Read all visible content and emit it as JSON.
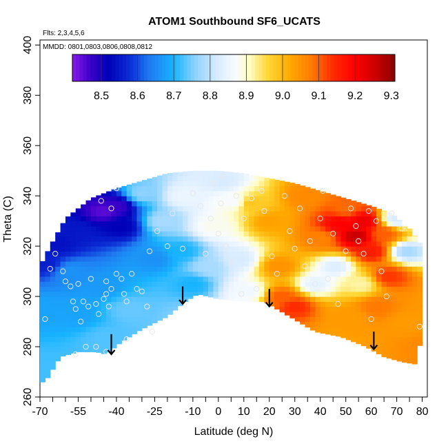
{
  "chart_data": {
    "type": "heatmap",
    "title": "ATOM1 Southbound SF6_UCATS",
    "annotations": [
      "Flts: 2,3,4,5,6",
      "MMDD: 0801,0803,0806,0808,0812"
    ],
    "xlabel": "Latitude (deg N)",
    "ylabel": "Theta (C)",
    "xlim": [
      -70,
      82
    ],
    "ylim": [
      260,
      402
    ],
    "x_tick_labels": [
      "-70",
      "-55",
      "-40",
      "-25",
      "-10",
      "0",
      "10",
      "20",
      "30",
      "40",
      "50",
      "60",
      "70",
      "80"
    ],
    "x_ticks_minor_step": 5,
    "y_tick_labels": [
      "260",
      "280",
      "300",
      "320",
      "340",
      "360",
      "380",
      "400"
    ],
    "grid": false,
    "colorbar": {
      "placement": "top-inside",
      "min": 8.42,
      "max": 9.31,
      "tick_labels": [
        "8.5",
        "8.6",
        "8.7",
        "8.8",
        "8.9",
        "9.0",
        "9.1",
        "9.2",
        "9.3"
      ],
      "stops": [
        {
          "v": 8.42,
          "c": "#8a1be8"
        },
        {
          "v": 8.47,
          "c": "#3a00c9"
        },
        {
          "v": 8.52,
          "c": "#0000b8"
        },
        {
          "v": 8.58,
          "c": "#0c2fd6"
        },
        {
          "v": 8.63,
          "c": "#1f78f0"
        },
        {
          "v": 8.7,
          "c": "#18b4ff"
        },
        {
          "v": 8.76,
          "c": "#8fd2ff"
        },
        {
          "v": 8.82,
          "c": "#d9ecff"
        },
        {
          "v": 8.87,
          "c": "#f7fbff"
        },
        {
          "v": 8.91,
          "c": "#fffcc0"
        },
        {
          "v": 8.96,
          "c": "#ffd633"
        },
        {
          "v": 9.02,
          "c": "#ffaa00"
        },
        {
          "v": 9.08,
          "c": "#ff7a00"
        },
        {
          "v": 9.14,
          "c": "#ff2a00"
        },
        {
          "v": 9.2,
          "c": "#ff0000"
        },
        {
          "v": 9.26,
          "c": "#c80000"
        },
        {
          "v": 9.31,
          "c": "#8a0000"
        }
      ]
    },
    "field": {
      "description_free": true,
      "top_boundary": [
        [
          -70,
          312
        ],
        [
          -66,
          320
        ],
        [
          -60,
          331
        ],
        [
          -50,
          339
        ],
        [
          -40,
          343
        ],
        [
          -30,
          346
        ],
        [
          -20,
          349
        ],
        [
          -10,
          350
        ],
        [
          0,
          350
        ],
        [
          10,
          349
        ],
        [
          20,
          347
        ],
        [
          30,
          345
        ],
        [
          40,
          342
        ],
        [
          50,
          339
        ],
        [
          60,
          336
        ],
        [
          68,
          333
        ],
        [
          75,
          327
        ],
        [
          80,
          320
        ]
      ],
      "bottom_boundary": [
        [
          -70,
          266
        ],
        [
          -68,
          266
        ],
        [
          -62,
          276
        ],
        [
          -55,
          278
        ],
        [
          -48,
          278
        ],
        [
          -44,
          277
        ],
        [
          -38,
          282
        ],
        [
          -30,
          287
        ],
        [
          -20,
          292
        ],
        [
          -13,
          298
        ],
        [
          -8,
          301
        ],
        [
          0,
          299
        ],
        [
          10,
          298
        ],
        [
          18,
          298
        ],
        [
          28,
          292
        ],
        [
          38,
          286
        ],
        [
          48,
          284
        ],
        [
          58,
          280
        ],
        [
          65,
          276
        ],
        [
          72,
          274
        ],
        [
          78,
          273
        ],
        [
          80,
          288
        ]
      ],
      "anchors": [
        {
          "x": -70,
          "y": 272,
          "v": 8.72
        },
        {
          "x": -70,
          "y": 295,
          "v": 8.68
        },
        {
          "x": -68,
          "y": 313,
          "v": 8.56
        },
        {
          "x": -63,
          "y": 321,
          "v": 8.54
        },
        {
          "x": -55,
          "y": 326,
          "v": 8.55
        },
        {
          "x": -45,
          "y": 334,
          "v": 8.45
        },
        {
          "x": -40,
          "y": 336,
          "v": 8.47
        },
        {
          "x": -38,
          "y": 328,
          "v": 8.52
        },
        {
          "x": -30,
          "y": 341,
          "v": 8.76
        },
        {
          "x": -58,
          "y": 310,
          "v": 8.66
        },
        {
          "x": -46,
          "y": 304,
          "v": 8.67
        },
        {
          "x": -55,
          "y": 293,
          "v": 8.68
        },
        {
          "x": -44,
          "y": 283,
          "v": 8.73
        },
        {
          "x": -35,
          "y": 295,
          "v": 8.74
        },
        {
          "x": -25,
          "y": 315,
          "v": 8.66
        },
        {
          "x": -22,
          "y": 330,
          "v": 8.78
        },
        {
          "x": -14,
          "y": 340,
          "v": 8.85
        },
        {
          "x": -14,
          "y": 318,
          "v": 8.7
        },
        {
          "x": -10,
          "y": 305,
          "v": 8.7
        },
        {
          "x": -4,
          "y": 312,
          "v": 8.78
        },
        {
          "x": -2,
          "y": 328,
          "v": 8.88
        },
        {
          "x": 2,
          "y": 346,
          "v": 8.82
        },
        {
          "x": 6,
          "y": 338,
          "v": 8.87
        },
        {
          "x": 8,
          "y": 315,
          "v": 8.82
        },
        {
          "x": 12,
          "y": 302,
          "v": 8.86
        },
        {
          "x": 13,
          "y": 337,
          "v": 8.98
        },
        {
          "x": 20,
          "y": 330,
          "v": 9.03
        },
        {
          "x": 24,
          "y": 312,
          "v": 9.05
        },
        {
          "x": 25,
          "y": 300,
          "v": 9.1
        },
        {
          "x": 30,
          "y": 296,
          "v": 9.14
        },
        {
          "x": 34,
          "y": 340,
          "v": 9.06
        },
        {
          "x": 38,
          "y": 305,
          "v": 8.84
        },
        {
          "x": 40,
          "y": 323,
          "v": 9.07
        },
        {
          "x": 46,
          "y": 312,
          "v": 8.83
        },
        {
          "x": 48,
          "y": 329,
          "v": 9.2
        },
        {
          "x": 50,
          "y": 335,
          "v": 9.09
        },
        {
          "x": 54,
          "y": 324,
          "v": 9.26
        },
        {
          "x": 57,
          "y": 330,
          "v": 9.22
        },
        {
          "x": 60,
          "y": 318,
          "v": 9.16
        },
        {
          "x": 56,
          "y": 305,
          "v": 8.92
        },
        {
          "x": 52,
          "y": 292,
          "v": 9.04
        },
        {
          "x": 62,
          "y": 296,
          "v": 9.08
        },
        {
          "x": 67,
          "y": 308,
          "v": 9.13
        },
        {
          "x": 65,
          "y": 325,
          "v": 9.1
        },
        {
          "x": 70,
          "y": 331,
          "v": 8.82
        },
        {
          "x": 74,
          "y": 318,
          "v": 8.78
        },
        {
          "x": 74,
          "y": 290,
          "v": 9.04
        },
        {
          "x": 80,
          "y": 280,
          "v": 9.06
        }
      ]
    },
    "observations": [
      [
        -68,
        291
      ],
      [
        -66,
        311
      ],
      [
        -64,
        317
      ],
      [
        -61,
        310
      ],
      [
        -60,
        306
      ],
      [
        -58,
        304
      ],
      [
        -57,
        298
      ],
      [
        -56,
        295
      ],
      [
        -55,
        305
      ],
      [
        -54,
        290
      ],
      [
        -53,
        298
      ],
      [
        -51,
        296
      ],
      [
        -50,
        307
      ],
      [
        -48,
        297
      ],
      [
        -47,
        293
      ],
      [
        -45,
        299
      ],
      [
        -44,
        301
      ],
      [
        -44,
        306
      ],
      [
        -43,
        296
      ],
      [
        -42,
        303
      ],
      [
        -40,
        309
      ],
      [
        -38,
        307
      ],
      [
        -37,
        301
      ],
      [
        -36,
        298
      ],
      [
        -34,
        309
      ],
      [
        -32,
        303
      ],
      [
        -30,
        302
      ],
      [
        -28,
        296
      ],
      [
        -26,
        286
      ],
      [
        -56,
        277
      ],
      [
        -52,
        280
      ],
      [
        -48,
        280
      ],
      [
        -44,
        278
      ],
      [
        -36,
        283
      ],
      [
        -46,
        338
      ],
      [
        -42,
        335
      ],
      [
        -40,
        343
      ],
      [
        -27,
        318
      ],
      [
        -24,
        326
      ],
      [
        -20,
        320
      ],
      [
        -18,
        333
      ],
      [
        -14,
        319
      ],
      [
        -12,
        327
      ],
      [
        -10,
        341
      ],
      [
        -7,
        336
      ],
      [
        -5,
        317
      ],
      [
        -3,
        331
      ],
      [
        -2,
        345
      ],
      [
        0,
        325
      ],
      [
        1,
        337
      ],
      [
        2,
        348
      ],
      [
        3,
        320
      ],
      [
        5,
        314
      ],
      [
        7,
        340
      ],
      [
        9,
        301
      ],
      [
        10,
        331
      ],
      [
        13,
        339
      ],
      [
        15,
        303
      ],
      [
        17,
        342
      ],
      [
        18,
        334
      ],
      [
        21,
        316
      ],
      [
        23,
        309
      ],
      [
        26,
        340
      ],
      [
        28,
        326
      ],
      [
        30,
        319
      ],
      [
        32,
        335
      ],
      [
        34,
        312
      ],
      [
        36,
        322
      ],
      [
        38,
        305
      ],
      [
        40,
        331
      ],
      [
        41,
        342
      ],
      [
        43,
        307
      ],
      [
        45,
        325
      ],
      [
        47,
        297
      ],
      [
        50,
        318
      ],
      [
        52,
        335
      ],
      [
        54,
        328
      ],
      [
        55,
        322
      ],
      [
        57,
        317
      ],
      [
        59,
        334
      ],
      [
        60,
        291
      ],
      [
        62,
        330
      ],
      [
        64,
        310
      ],
      [
        66,
        300
      ],
      [
        68,
        333
      ],
      [
        72,
        327
      ],
      [
        74,
        313
      ],
      [
        79,
        288
      ]
    ],
    "arrows": [
      {
        "x": -42,
        "y_from": 285,
        "y_to": 277
      },
      {
        "x": -14,
        "y_from": 304,
        "y_to": 297
      },
      {
        "x": 20,
        "y_from": 303,
        "y_to": 296
      },
      {
        "x": 61,
        "y_from": 286,
        "y_to": 279
      }
    ]
  }
}
